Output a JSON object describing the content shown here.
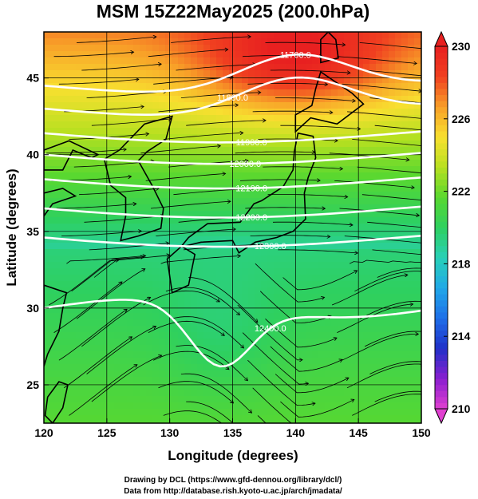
{
  "title": "MSM 15Z22May2025 (200.0hPa)",
  "axes": {
    "xlabel": "Longitude (degrees)",
    "ylabel": "Latitude  (degrees)",
    "xlim": [
      120,
      150
    ],
    "ylim": [
      22.5,
      48
    ],
    "xticks": [
      120,
      125,
      130,
      135,
      140,
      145,
      150
    ],
    "yticks": [
      25,
      30,
      35,
      40,
      45
    ],
    "grid": true
  },
  "colorbar": {
    "min": 210,
    "max": 230,
    "ticks": [
      210,
      214,
      218,
      222,
      226,
      230
    ],
    "colors": [
      "#e040d0",
      "#8a1fd0",
      "#2030c8",
      "#1e6ee8",
      "#20a8e8",
      "#28d0b8",
      "#2ed060",
      "#58d830",
      "#b8e020",
      "#f8e030",
      "#f8a028",
      "#f04020",
      "#e82020"
    ],
    "extend": "both"
  },
  "contours": [
    {
      "label": "11700.0"
    },
    {
      "label": "11800.0"
    },
    {
      "label": "11900.0"
    },
    {
      "label": "12000.0"
    },
    {
      "label": "12100.0"
    },
    {
      "label": "12200.0"
    },
    {
      "label": "12300.0"
    },
    {
      "label": "12400.0"
    }
  ],
  "credits": {
    "line1": "Drawing by DCL (https://www.gfd-dennou.org/library/dcl/)",
    "line2": "Data from http://database.rish.kyoto-u.ac.jp/arch/jmadata/"
  }
}
